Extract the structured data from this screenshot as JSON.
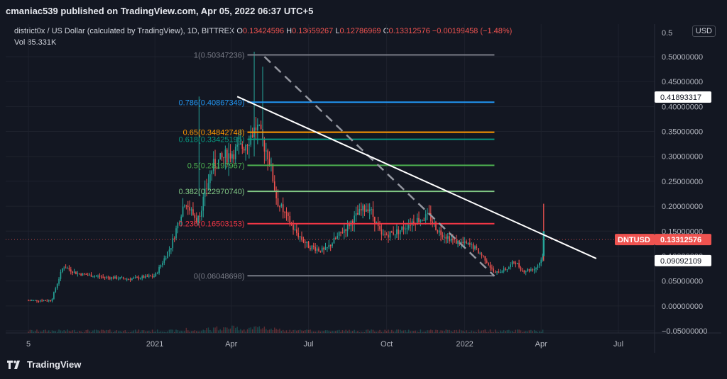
{
  "header": {
    "published": "cmaniac539 published on TradingView.com, Apr 05, 2022 06:37 UTC+5"
  },
  "legend": {
    "symbol": "district0x / US Dollar (calculated by TradingView), 1D, BITTREX",
    "o_label": "O",
    "o": "0.13424596",
    "h_label": "H",
    "h": "0.13659267",
    "l_label": "L",
    "l": "0.12786969",
    "c_label": "C",
    "c": "0.13312576",
    "change": "−0.00199458 (−1.48%)",
    "vol_label": "Vol",
    "vol": "85.331K"
  },
  "currency_button": "USD",
  "footer": {
    "brand": "TradingView"
  },
  "colors": {
    "bg": "#131722",
    "up": "#26a69a",
    "down": "#ef5350",
    "grid": "#1e222d",
    "trendline": "#ffffff"
  },
  "chart_data": {
    "type": "candlestick",
    "y_axis": {
      "ylim": [
        -0.05,
        0.55
      ],
      "ticks": [
        "0.50000000",
        "0.45000000",
        "0.40000000",
        "0.35000000",
        "0.30000000",
        "0.25000000",
        "0.20000000",
        "0.15000000",
        "0.10000000",
        "0.05000000",
        "0.00000000",
        "−0.05000000"
      ],
      "tick_values": [
        0.5,
        0.45,
        0.4,
        0.35,
        0.3,
        0.25,
        0.2,
        0.15,
        0.1,
        0.05,
        0.0,
        -0.05
      ],
      "top_cut_label": "0.5"
    },
    "x_axis": {
      "ticks": [
        {
          "label": "5",
          "date": "2020-08-05"
        },
        {
          "label": "2021",
          "date": "2021-01-01"
        },
        {
          "label": "Apr",
          "date": "2021-04-01"
        },
        {
          "label": "Jul",
          "date": "2021-07-01"
        },
        {
          "label": "Oct",
          "date": "2021-10-01"
        },
        {
          "label": "2022",
          "date": "2022-01-01"
        },
        {
          "label": "Apr",
          "date": "2022-04-01"
        },
        {
          "label": "Jul",
          "date": "2022-07-01"
        }
      ]
    },
    "fib_levels": [
      {
        "label": "1(0.50347236)",
        "value": 0.50347,
        "color": "#787b86"
      },
      {
        "label": "0.786(0.40867349)",
        "value": 0.40867,
        "color": "#2196f3"
      },
      {
        "label": "0.65(0.34842748)",
        "value": 0.34843,
        "color": "#ff9800"
      },
      {
        "label": "0.618(0.33425195)",
        "value": 0.33425,
        "color": "#089981"
      },
      {
        "label": "0.5(0.28197967)",
        "value": 0.28198,
        "color": "#4caf50"
      },
      {
        "label": "0.382(0.22970740)",
        "value": 0.22971,
        "color": "#81c784"
      },
      {
        "label": "0.236(0.16503153)",
        "value": 0.16503,
        "color": "#f23645"
      },
      {
        "label": "0(0.06048698)",
        "value": 0.06049,
        "color": "#787b86"
      }
    ],
    "fib_range": {
      "start": "2021-04-20",
      "end": "2022-02-05"
    },
    "price_markers": [
      {
        "label": "0.41893317",
        "value": 0.41893,
        "style": "white"
      },
      {
        "label": "DNTUSD",
        "value": 0.13313,
        "style": "red-tag"
      },
      {
        "label": "0.13312576",
        "value": 0.13313,
        "style": "red"
      },
      {
        "label": "0.09092109",
        "value": 0.09092,
        "style": "white"
      }
    ],
    "trendline": {
      "from": {
        "date": "2021-04-08",
        "value": 0.42
      },
      "to": {
        "date": "2022-06-05",
        "value": 0.095
      }
    },
    "dashed_line": {
      "from": {
        "date": "2021-05-10",
        "value": 0.5
      },
      "to": {
        "date": "2022-02-05",
        "value": 0.06
      }
    },
    "price_path": [
      {
        "date": "2020-08-05",
        "value": 0.011
      },
      {
        "date": "2020-09-01",
        "value": 0.011
      },
      {
        "date": "2020-09-15",
        "value": 0.08
      },
      {
        "date": "2020-10-01",
        "value": 0.065
      },
      {
        "date": "2020-11-01",
        "value": 0.058
      },
      {
        "date": "2020-12-01",
        "value": 0.054
      },
      {
        "date": "2021-01-01",
        "value": 0.06
      },
      {
        "date": "2021-01-20",
        "value": 0.12
      },
      {
        "date": "2021-02-05",
        "value": 0.21
      },
      {
        "date": "2021-02-20",
        "value": 0.17
      },
      {
        "date": "2021-03-10",
        "value": 0.28
      },
      {
        "date": "2021-03-25",
        "value": 0.3
      },
      {
        "date": "2021-04-15",
        "value": 0.32
      },
      {
        "date": "2021-05-01",
        "value": 0.36
      },
      {
        "date": "2021-05-15",
        "value": 0.3
      },
      {
        "date": "2021-05-25",
        "value": 0.21
      },
      {
        "date": "2021-06-15",
        "value": 0.15
      },
      {
        "date": "2021-07-01",
        "value": 0.12
      },
      {
        "date": "2021-07-20",
        "value": 0.11
      },
      {
        "date": "2021-08-10",
        "value": 0.15
      },
      {
        "date": "2021-09-01",
        "value": 0.19
      },
      {
        "date": "2021-09-10",
        "value": 0.2
      },
      {
        "date": "2021-09-25",
        "value": 0.14
      },
      {
        "date": "2021-10-15",
        "value": 0.15
      },
      {
        "date": "2021-11-01",
        "value": 0.17
      },
      {
        "date": "2021-11-20",
        "value": 0.18
      },
      {
        "date": "2021-12-01",
        "value": 0.15
      },
      {
        "date": "2021-12-20",
        "value": 0.13
      },
      {
        "date": "2022-01-10",
        "value": 0.12
      },
      {
        "date": "2022-01-25",
        "value": 0.095
      },
      {
        "date": "2022-02-05",
        "value": 0.065
      },
      {
        "date": "2022-02-20",
        "value": 0.075
      },
      {
        "date": "2022-03-01",
        "value": 0.09
      },
      {
        "date": "2022-03-10",
        "value": 0.07
      },
      {
        "date": "2022-03-25",
        "value": 0.075
      },
      {
        "date": "2022-04-02",
        "value": 0.095
      },
      {
        "date": "2022-04-05",
        "value": 0.133
      }
    ],
    "last_spike": {
      "date": "2022-04-04",
      "high": 0.205,
      "low": 0.09
    },
    "volume_label": "Vol"
  }
}
